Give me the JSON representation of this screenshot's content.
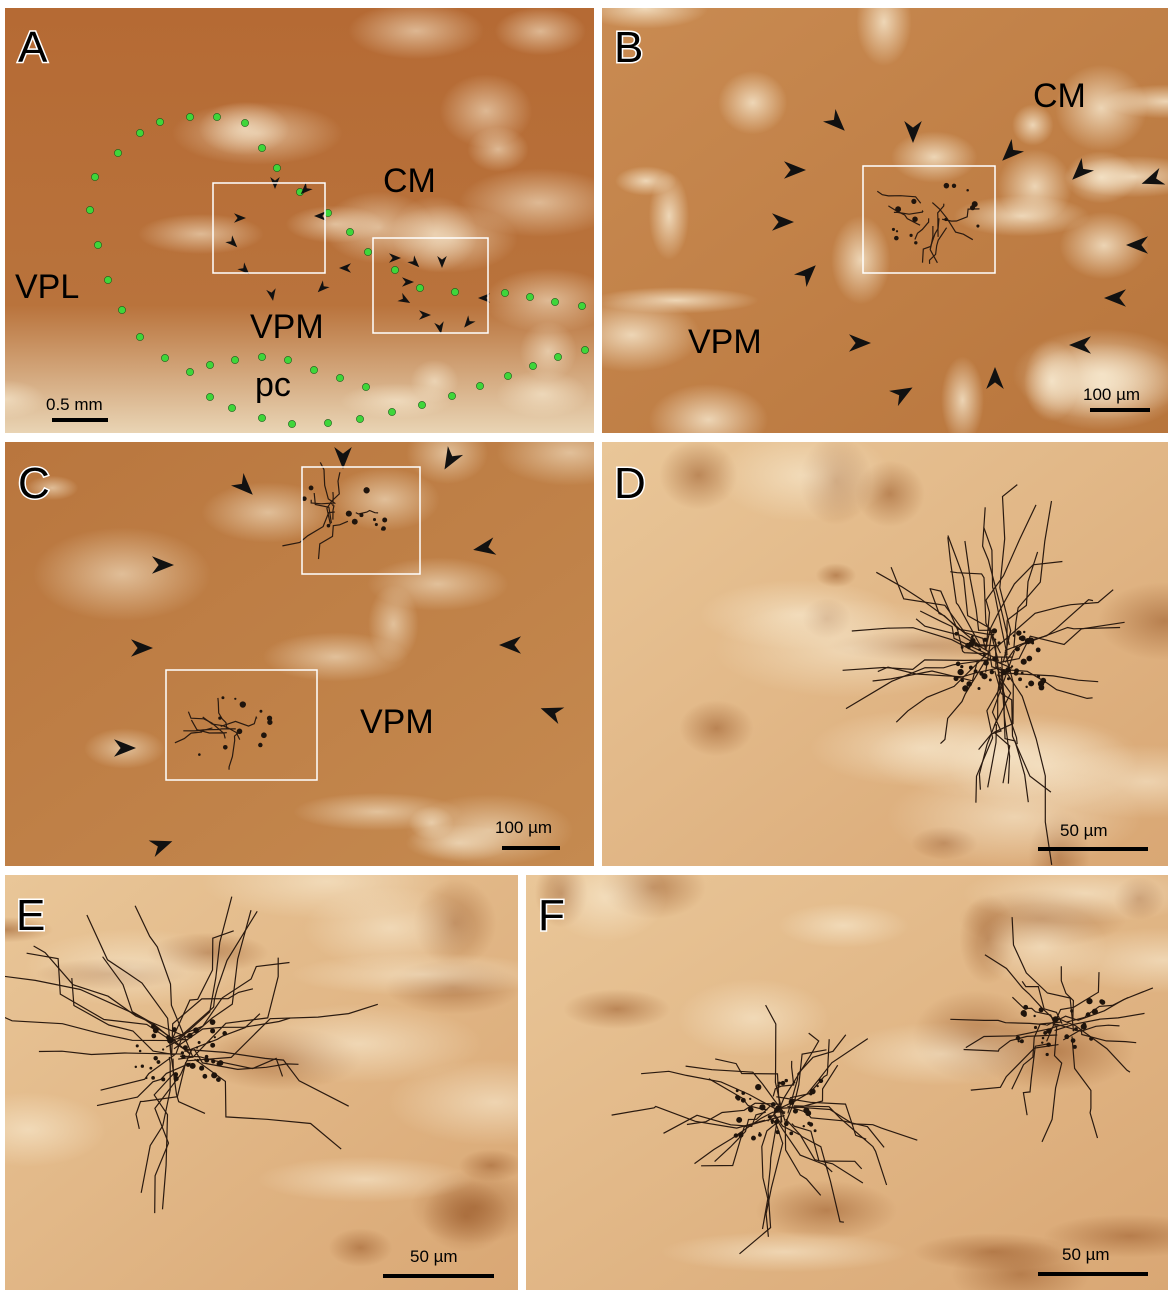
{
  "panels": [
    {
      "letter": "A",
      "labels": [
        "CM",
        "VPL",
        "VPM",
        "pc"
      ],
      "scale_bar": "0.5 mm"
    },
    {
      "letter": "B",
      "labels": [
        "CM",
        "VPM"
      ],
      "scale_bar": "100 µm"
    },
    {
      "letter": "C",
      "labels": [
        "VPM"
      ],
      "scale_bar": "100 µm"
    },
    {
      "letter": "D",
      "scale_bar": "50 µm"
    },
    {
      "letter": "E",
      "scale_bar": "50 µm"
    },
    {
      "letter": "F",
      "scale_bar": "50 µm"
    }
  ]
}
